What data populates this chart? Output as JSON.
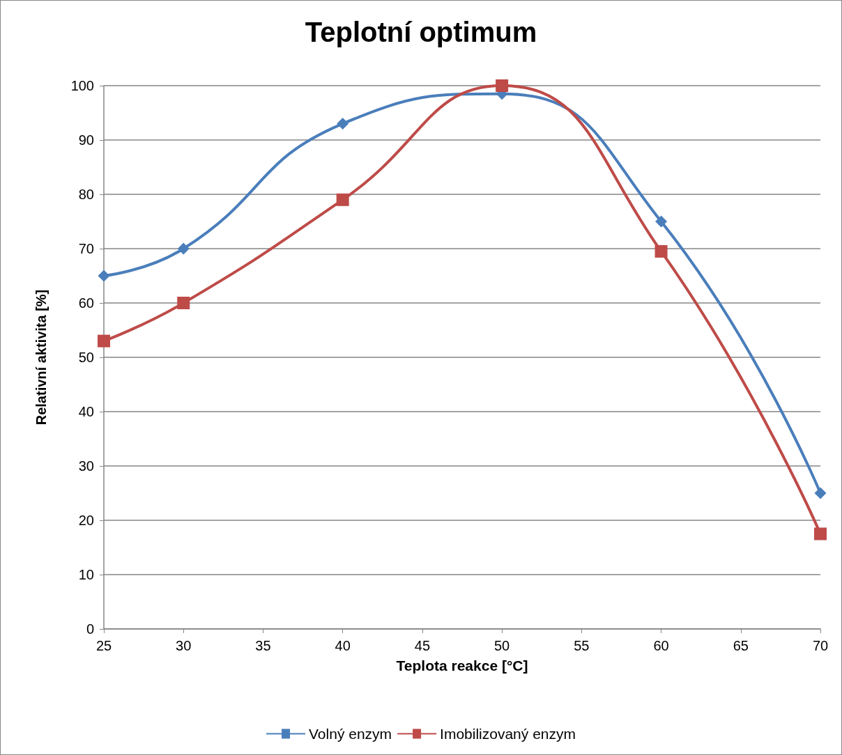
{
  "chart_data": {
    "type": "line",
    "title": "Teplotní optimum",
    "xlabel": "Teplota reakce [°C]",
    "ylabel": "Relativní aktivita [%]",
    "x": [
      25,
      30,
      40,
      50,
      60,
      70
    ],
    "series": [
      {
        "name": "Volný enzym",
        "color": "#4a7ebb",
        "marker": "diamond",
        "values": [
          65,
          70,
          93,
          98.5,
          75,
          25
        ]
      },
      {
        "name": "Imobilizovaný enzym",
        "color": "#be4b48",
        "marker": "square",
        "values": [
          53,
          60,
          79,
          100,
          69.5,
          17.5
        ]
      }
    ],
    "xlim": [
      25,
      70
    ],
    "xticks": [
      25,
      30,
      35,
      40,
      45,
      50,
      55,
      60,
      65,
      70
    ],
    "ylim": [
      0,
      100
    ],
    "yticks": [
      0,
      10,
      20,
      30,
      40,
      50,
      60,
      70,
      80,
      90,
      100
    ],
    "grid": "y",
    "legend": "bottom",
    "line_style": "solid"
  }
}
